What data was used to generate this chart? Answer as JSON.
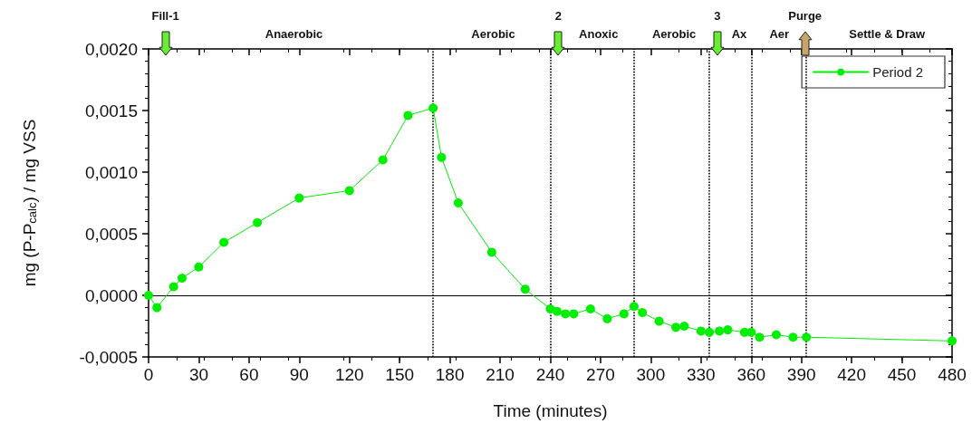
{
  "chart_data": {
    "type": "line",
    "xlabel": "Time (minutes)",
    "ylabel": "mg (P-P$_{calc}$) / mg VSS",
    "x": [
      0,
      5,
      15,
      20,
      30,
      45,
      65,
      90,
      120,
      140,
      155,
      170,
      175,
      185,
      205,
      225,
      240,
      244,
      249,
      254,
      264,
      274,
      284,
      290,
      295,
      305,
      315,
      320,
      330,
      335,
      341,
      346,
      356,
      360,
      365,
      375,
      385,
      393,
      480
    ],
    "series": [
      {
        "name": "Period 2",
        "color": "#00ee00",
        "values": [
          0,
          -0.0001,
          7e-05,
          0.00014,
          0.00023,
          0.00043,
          0.00059,
          0.00079,
          0.00085,
          0.0011,
          0.00146,
          0.00152,
          0.00112,
          0.00075,
          0.00035,
          5e-05,
          -0.00011,
          -0.00013,
          -0.00015,
          -0.00015,
          -0.00011,
          -0.00019,
          -0.00015,
          -9e-05,
          -0.00014,
          -0.00021,
          -0.00026,
          -0.00025,
          -0.00029,
          -0.0003,
          -0.00029,
          -0.00028,
          -0.0003,
          -0.0003,
          -0.00034,
          -0.00032,
          -0.00034,
          -0.00034,
          -0.00037
        ]
      }
    ],
    "xlim": [
      0,
      480
    ],
    "xticks": [
      0,
      30,
      60,
      90,
      120,
      150,
      180,
      210,
      240,
      270,
      300,
      330,
      360,
      390,
      420,
      450,
      480
    ],
    "ylim": [
      -0.0005,
      0.002
    ],
    "yticks": [
      {
        "value": -0.0005,
        "label": "-0,0005"
      },
      {
        "value": 0,
        "label": "0,0000"
      },
      {
        "value": 0.0005,
        "label": "0,0005"
      },
      {
        "value": 0.001,
        "label": "0,0010"
      },
      {
        "value": 0.0015,
        "label": "0,0015"
      },
      {
        "value": 0.002,
        "label": "0,0020"
      }
    ],
    "grid": false,
    "legend": "top right",
    "marker": "circle",
    "line_style": "solid",
    "ref_lines": [
      {
        "axis": "y",
        "value": 0,
        "color": "#000000",
        "line_style": "solid"
      },
      {
        "axis": "x",
        "value": 170,
        "color": "#000000",
        "line_style": "dotted"
      },
      {
        "axis": "x",
        "value": 240,
        "color": "#000000",
        "line_style": "dotted"
      },
      {
        "axis": "x",
        "value": 290,
        "color": "#000000",
        "line_style": "dotted"
      },
      {
        "axis": "x",
        "value": 335,
        "color": "#000000",
        "line_style": "dotted"
      },
      {
        "axis": "x",
        "value": 360,
        "color": "#000000",
        "line_style": "dotted"
      },
      {
        "axis": "x",
        "value": 393,
        "color": "#000000",
        "line_style": "dotted"
      }
    ],
    "annotations": [
      "Fill-1",
      "Anaerobic",
      "Aerobic",
      "2",
      "Anoxic",
      "Aerobic",
      "3",
      "Ax",
      "Aer",
      "Purge",
      "Settle & Draw"
    ]
  }
}
